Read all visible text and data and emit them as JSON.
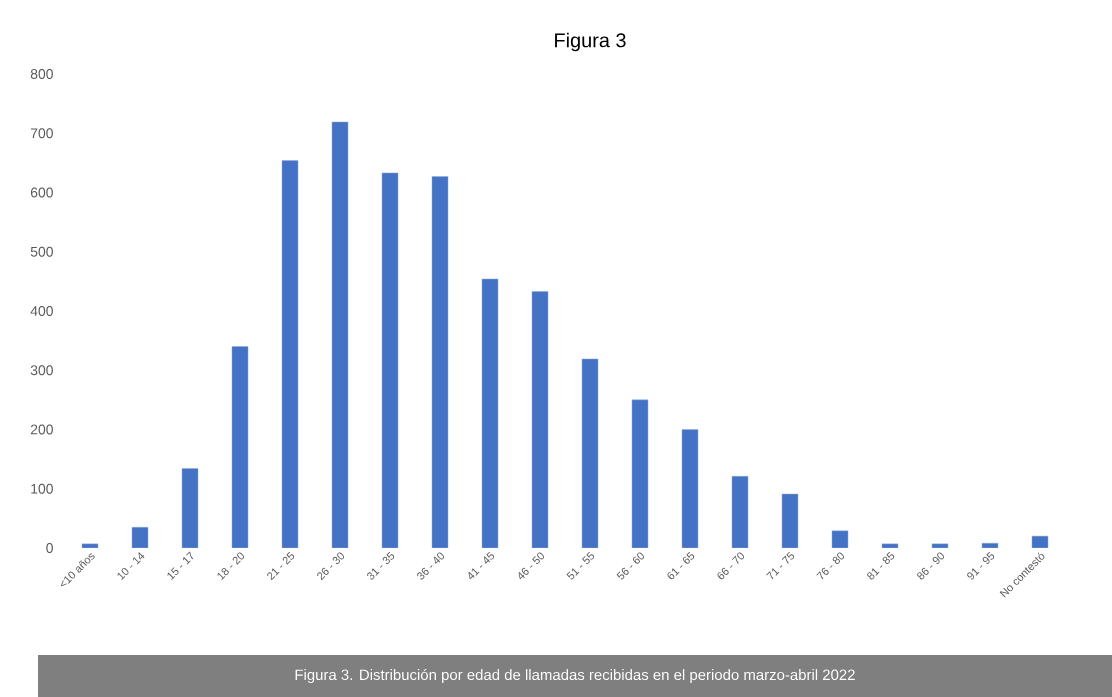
{
  "chart_data": {
    "type": "bar",
    "title": "Figura 3",
    "categories": [
      "<10 años",
      "10 - 14",
      "15 - 17",
      "18 - 20",
      "21 - 25",
      "26 - 30",
      "31 - 35",
      "36 - 40",
      "41 - 45",
      "46 - 50",
      "51 - 55",
      "56 - 60",
      "61 - 65",
      "66 - 70",
      "71 - 75",
      "76 - 80",
      "81 - 85",
      "86 - 90",
      "91 - 95",
      "No contestó"
    ],
    "values": [
      7,
      35,
      134,
      340,
      654,
      719,
      633,
      627,
      454,
      433,
      319,
      250,
      200,
      121,
      91,
      29,
      7,
      7,
      8,
      20
    ],
    "color": "#4472c4",
    "ylim": [
      0,
      800
    ],
    "yticks": [
      0,
      100,
      200,
      300,
      400,
      500,
      600,
      700,
      800
    ],
    "annotations": [
      "Figura 3. Distribución por edad de llamadas recibidas en el periodo marzo-abril 2022"
    ]
  }
}
